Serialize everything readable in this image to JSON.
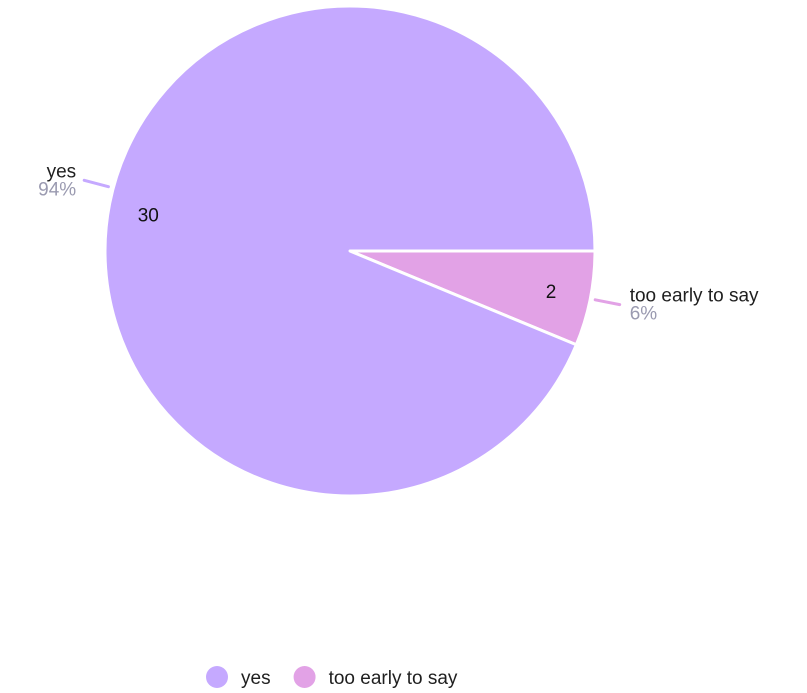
{
  "chart_data": {
    "type": "pie",
    "slices": [
      {
        "label": "yes",
        "value": 30,
        "percent_label": "94%",
        "value_label": "30",
        "color": "#c5a9ff"
      },
      {
        "label": "too early to say",
        "value": 2,
        "percent_label": "6%",
        "value_label": "2",
        "color": "#e2a2e6"
      }
    ],
    "legend": {
      "position": "bottom",
      "items": [
        "yes",
        "too early to say"
      ]
    }
  }
}
